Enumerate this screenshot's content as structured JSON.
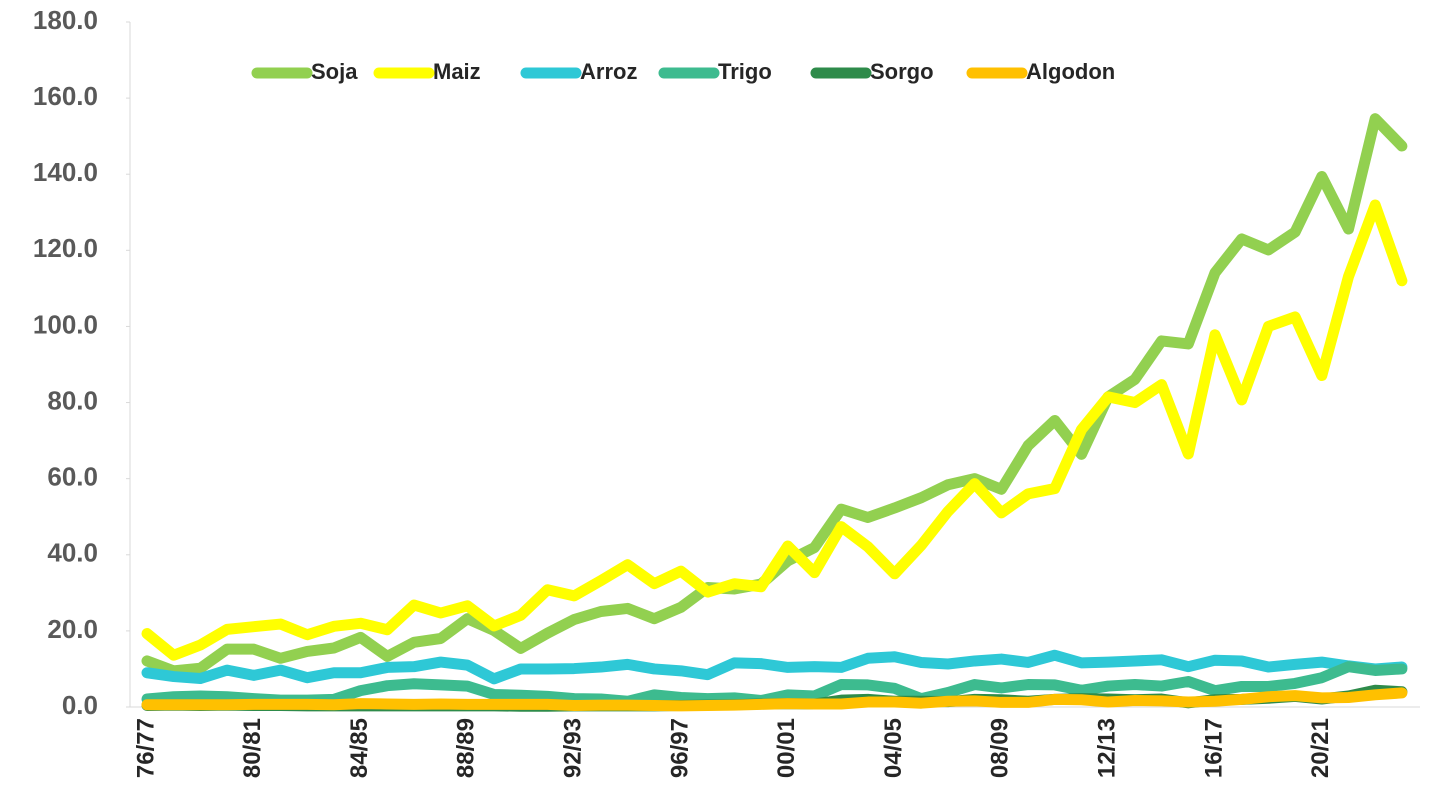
{
  "chart_data": {
    "type": "line",
    "categories": [
      "76/77",
      null,
      null,
      null,
      "80/81",
      null,
      null,
      null,
      "84/85",
      null,
      null,
      null,
      "88/89",
      null,
      null,
      null,
      "92/93",
      null,
      null,
      null,
      "96/97",
      null,
      null,
      null,
      "00/01",
      null,
      null,
      null,
      "04/05",
      null,
      null,
      null,
      "08/09",
      null,
      null,
      null,
      "12/13",
      null,
      null,
      null,
      "16/17",
      null,
      null,
      null,
      "20/21",
      null,
      null,
      null
    ],
    "series": [
      {
        "name": "Soja",
        "color": "#92d050",
        "values": [
          12.1,
          9.5,
          10.2,
          15.2,
          15.2,
          12.8,
          14.6,
          15.5,
          18.3,
          13.3,
          17.0,
          18.0,
          23.2,
          20.1,
          15.4,
          19.4,
          23.0,
          25.1,
          25.9,
          23.2,
          26.2,
          31.4,
          31.0,
          32.3,
          38.4,
          41.9,
          52.0,
          49.8,
          52.3,
          55.0,
          58.4,
          60.0,
          57.2,
          68.7,
          75.3,
          66.4,
          81.5,
          86.1,
          96.2,
          95.4,
          114.1,
          123.0,
          120.1,
          124.8,
          139.4,
          125.6,
          154.6,
          147.4
        ]
      },
      {
        "name": "Maiz",
        "color": "#ffff00",
        "values": [
          19.3,
          13.6,
          16.3,
          20.4,
          21.1,
          21.8,
          19.0,
          21.2,
          22.0,
          20.3,
          26.8,
          24.7,
          26.6,
          21.3,
          24.1,
          30.8,
          29.2,
          33.2,
          37.4,
          32.4,
          35.7,
          30.2,
          32.4,
          31.6,
          42.3,
          35.3,
          47.4,
          42.1,
          35.0,
          42.5,
          51.4,
          58.7,
          51.0,
          56.0,
          57.4,
          72.9,
          81.5,
          80.0,
          84.7,
          66.5,
          97.8,
          80.7,
          100.0,
          102.5,
          87.1,
          113.1,
          131.9,
          112.0
        ]
      },
      {
        "name": "Arroz",
        "color": "#2ec8d6",
        "values": [
          9.0,
          8.0,
          7.5,
          9.7,
          8.3,
          9.7,
          7.7,
          9.0,
          9.0,
          10.4,
          10.6,
          11.8,
          11.0,
          7.4,
          10.0,
          10.0,
          10.1,
          10.5,
          11.2,
          10.0,
          9.5,
          8.5,
          11.6,
          11.4,
          10.4,
          10.6,
          10.4,
          12.8,
          13.2,
          11.7,
          11.3,
          12.1,
          12.6,
          11.7,
          13.6,
          11.6,
          11.8,
          12.1,
          12.4,
          10.6,
          12.3,
          12.1,
          10.5,
          11.2,
          11.8,
          10.8,
          10.0,
          10.5
        ]
      },
      {
        "name": "Trigo",
        "color": "#3dbb8f",
        "values": [
          2.1,
          2.7,
          2.9,
          2.7,
          2.2,
          1.8,
          1.8,
          2.0,
          4.3,
          5.6,
          6.1,
          5.8,
          5.5,
          3.3,
          3.1,
          2.8,
          2.2,
          2.1,
          1.5,
          3.2,
          2.5,
          2.2,
          2.4,
          1.7,
          3.2,
          2.9,
          5.9,
          5.8,
          4.9,
          2.2,
          3.8,
          5.9,
          5.0,
          5.9,
          5.8,
          4.4,
          5.5,
          5.9,
          5.5,
          6.7,
          4.3,
          5.4,
          5.4,
          6.2,
          7.7,
          10.6,
          9.6,
          10.0
        ]
      },
      {
        "name": "Sorgo",
        "color": "#2e8b4a",
        "values": [
          0.4,
          0.5,
          0.4,
          0.5,
          0.4,
          0.4,
          0.3,
          0.3,
          0.3,
          0.3,
          0.3,
          0.3,
          0.3,
          0.3,
          0.2,
          0.2,
          0.3,
          0.3,
          0.3,
          0.3,
          0.4,
          0.5,
          0.6,
          0.8,
          0.9,
          0.8,
          1.8,
          2.0,
          1.5,
          1.5,
          1.4,
          2.0,
          1.9,
          1.5,
          2.0,
          2.2,
          2.1,
          1.9,
          2.1,
          1.1,
          1.9,
          2.0,
          2.3,
          2.8,
          2.1,
          2.9,
          4.4,
          4.0
        ]
      },
      {
        "name": "Algodon",
        "color": "#ffc000",
        "values": [
          0.6,
          0.6,
          0.6,
          0.6,
          0.7,
          0.7,
          0.7,
          0.6,
          0.9,
          0.8,
          0.7,
          0.8,
          0.7,
          0.7,
          0.7,
          0.7,
          0.4,
          0.5,
          0.5,
          0.4,
          0.3,
          0.4,
          0.5,
          0.7,
          0.9,
          0.8,
          0.8,
          1.3,
          1.3,
          1.0,
          1.5,
          1.6,
          1.2,
          1.2,
          2.0,
          1.9,
          1.3,
          1.7,
          1.6,
          1.3,
          1.5,
          2.0,
          2.7,
          3.0,
          2.4,
          2.5,
          3.2,
          3.7
        ]
      }
    ],
    "ylim": [
      0,
      180
    ],
    "yticks": [
      {
        "value": 0,
        "label": "0.0"
      },
      {
        "value": 20,
        "label": "20.0"
      },
      {
        "value": 40,
        "label": "40.0"
      },
      {
        "value": 60,
        "label": "60.0"
      },
      {
        "value": 80,
        "label": "80.0"
      },
      {
        "value": 100,
        "label": "100.0"
      },
      {
        "value": 120,
        "label": "120.0"
      },
      {
        "value": 140,
        "label": "140.0"
      },
      {
        "value": 160,
        "label": "160.0"
      },
      {
        "value": 180,
        "label": "180.0"
      }
    ],
    "legend": "top"
  }
}
